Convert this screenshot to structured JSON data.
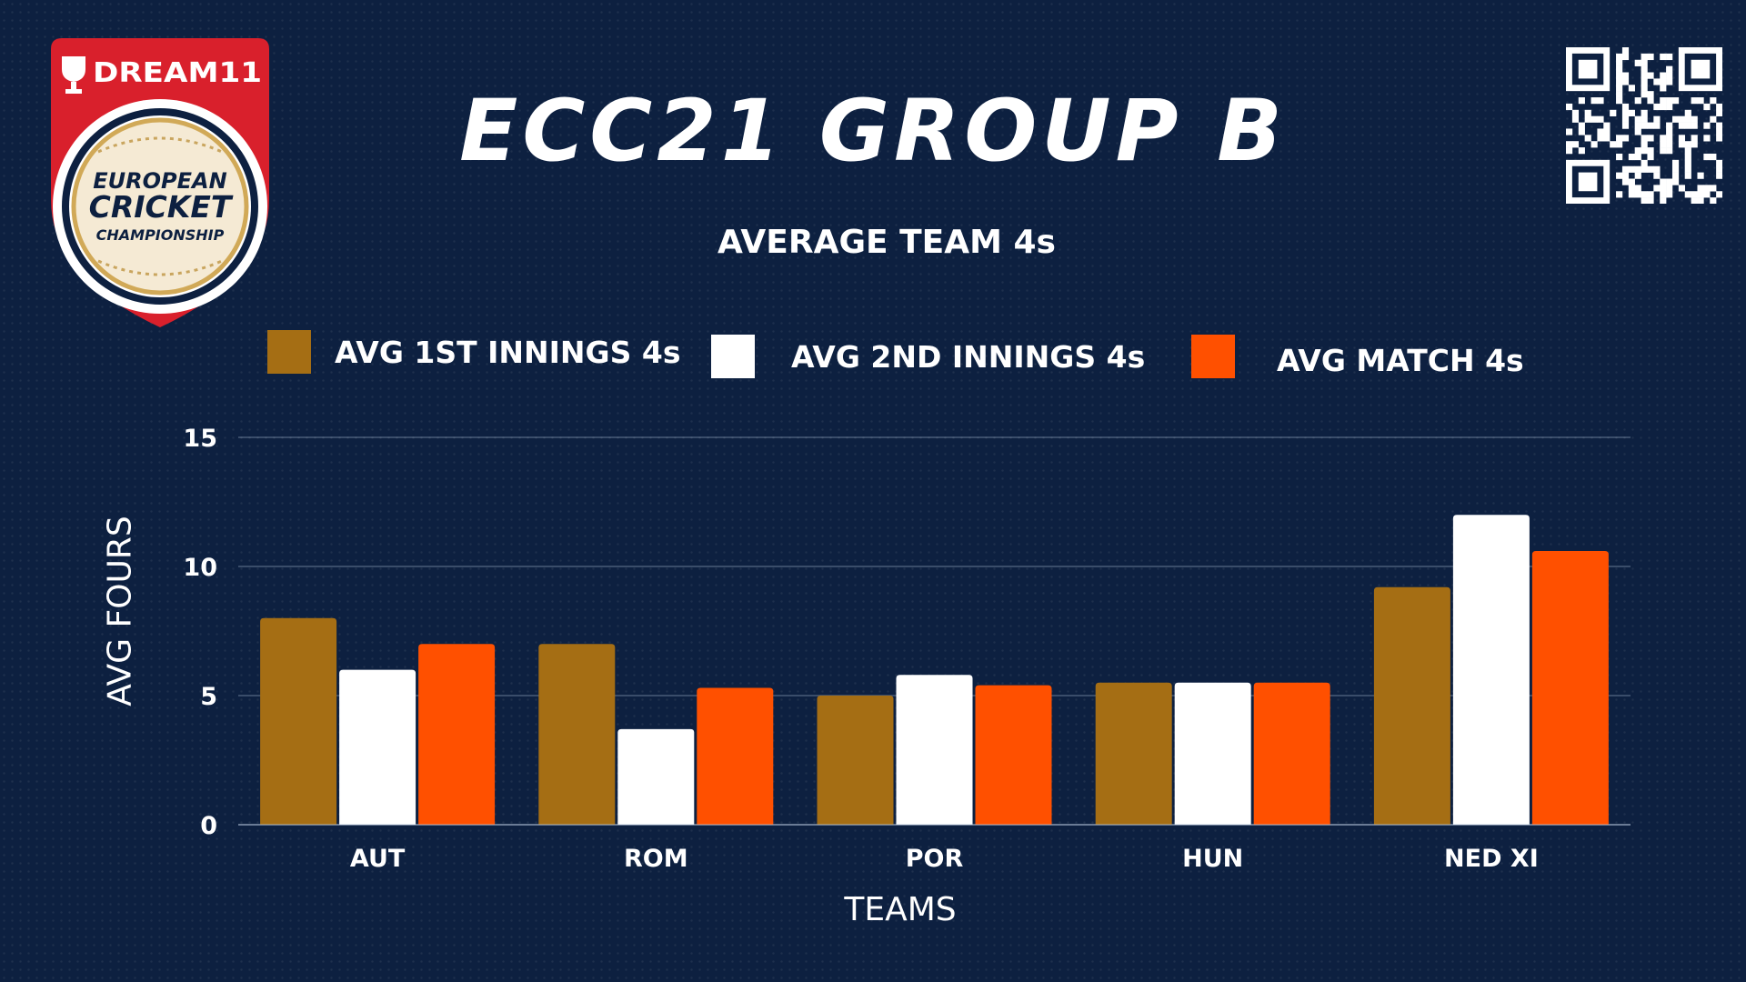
{
  "logo": {
    "brand": "DREAM11",
    "line1": "EUROPEAN",
    "line2": "CRICKET",
    "line3": "CHAMPIONSHIP"
  },
  "header": {
    "title": "ECC21 GROUP B",
    "subtitle": "AVERAGE TEAM 4s"
  },
  "colors": {
    "background": "#0d2040",
    "gold": "#a56e14",
    "white": "#ffffff",
    "orange": "#ff5000",
    "logo_red": "#d9202c"
  },
  "chart_data": {
    "type": "bar",
    "title": "ECC21 GROUP B",
    "subtitle": "AVERAGE TEAM 4s",
    "xlabel": "TEAMS",
    "ylabel": "AVG FOURS",
    "categories": [
      "AUT",
      "ROM",
      "POR",
      "HUN",
      "NED XI"
    ],
    "ylim": [
      0,
      15
    ],
    "yticks": [
      0,
      5,
      10,
      15
    ],
    "grid": true,
    "legend": "top",
    "series": [
      {
        "name": "AVG 1ST INNINGS 4s",
        "color": "#a56e14",
        "values": [
          8,
          7,
          5,
          5.5,
          9.2
        ]
      },
      {
        "name": "AVG 2ND INNINGS 4s",
        "color": "#ffffff",
        "values": [
          6,
          3.7,
          5.8,
          5.5,
          12
        ]
      },
      {
        "name": "AVG MATCH 4s",
        "color": "#ff5000",
        "values": [
          7,
          5.3,
          5.4,
          5.5,
          10.6
        ]
      }
    ]
  }
}
